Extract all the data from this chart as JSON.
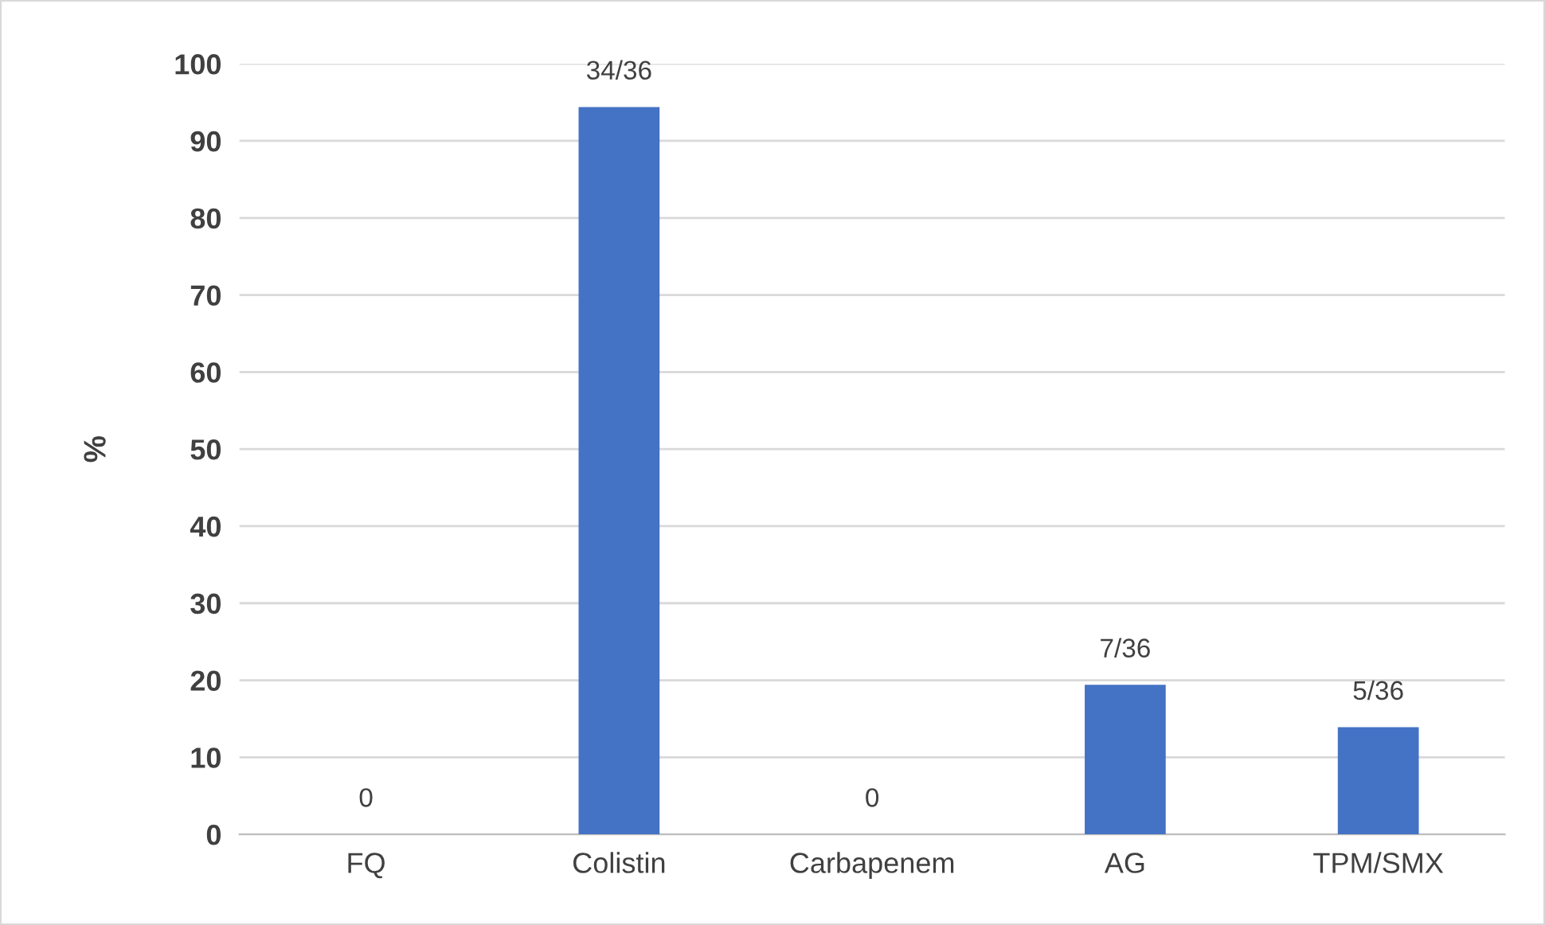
{
  "chart_data": {
    "type": "bar",
    "ylabel": "%",
    "categories": [
      "FQ",
      "Colistin",
      "Carbapenem",
      "AG",
      "TPM/SMX"
    ],
    "values": [
      0,
      94.4,
      0,
      19.4,
      13.9
    ],
    "value_labels": [
      "0",
      "34/36",
      "0",
      "7/36",
      "5/36"
    ],
    "color": "#4472c4",
    "ylim": [
      0,
      100
    ],
    "yticks": [
      0,
      10,
      20,
      30,
      40,
      50,
      60,
      70,
      80,
      90,
      100
    ],
    "grid": "y",
    "legend": false
  }
}
